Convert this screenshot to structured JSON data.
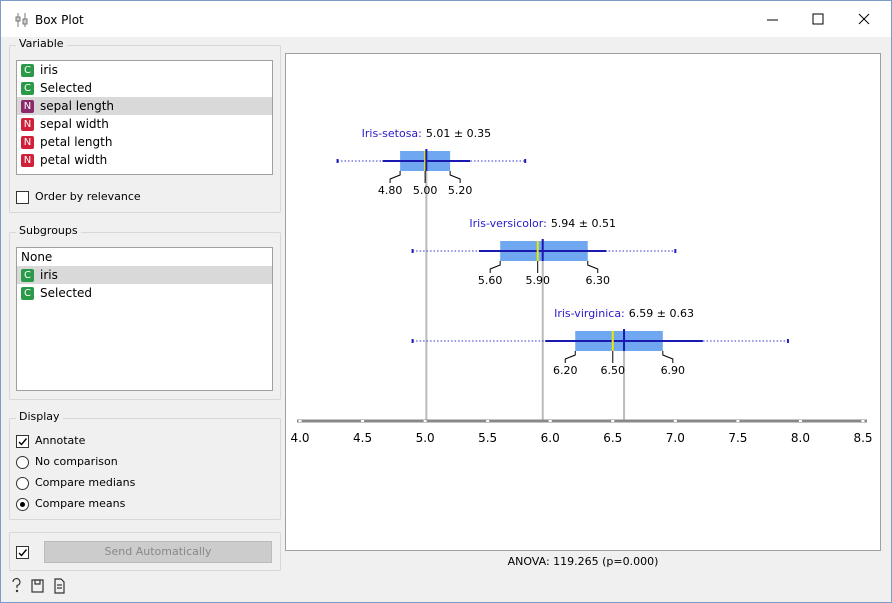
{
  "window": {
    "title": "Box Plot"
  },
  "variable": {
    "title": "Variable",
    "selected": 2,
    "items": [
      {
        "icon": "C",
        "label": "iris"
      },
      {
        "icon": "C",
        "label": "Selected"
      },
      {
        "icon": "N",
        "label": "sepal length"
      },
      {
        "icon": "N",
        "label": "sepal width"
      },
      {
        "icon": "N",
        "label": "petal length"
      },
      {
        "icon": "N",
        "label": "petal width"
      }
    ],
    "order_by_relevance": {
      "label": "Order by relevance",
      "checked": false
    }
  },
  "subgroups": {
    "title": "Subgroups",
    "selected": 1,
    "items": [
      {
        "label": "None"
      },
      {
        "icon": "C",
        "label": "iris"
      },
      {
        "icon": "C",
        "label": "Selected"
      }
    ]
  },
  "display": {
    "title": "Display",
    "annotate": {
      "label": "Annotate",
      "checked": true
    },
    "options": [
      "No comparison",
      "Compare medians",
      "Compare means"
    ],
    "selected": 2
  },
  "send": {
    "label": "Send Automatically",
    "checked": true
  },
  "chart_data": {
    "type": "box",
    "xlim": [
      4.0,
      8.5
    ],
    "xticks": [
      {
        "value": 4.0,
        "label": "4.0"
      },
      {
        "value": 4.5,
        "label": "4.5"
      },
      {
        "value": 5.0,
        "label": "5.0"
      },
      {
        "value": 5.5,
        "label": "5.5"
      },
      {
        "value": 6.0,
        "label": "6.0"
      },
      {
        "value": 6.5,
        "label": "6.5"
      },
      {
        "value": 7.0,
        "label": "7.0"
      },
      {
        "value": 7.5,
        "label": "7.5"
      },
      {
        "value": 8.0,
        "label": "8.0"
      },
      {
        "value": 8.5,
        "label": "8.5"
      }
    ],
    "box_color": "#6fa8f0",
    "median_color": "#e8e800",
    "mean_color": "#1a1ab0",
    "name_color": "#2a1ac8",
    "groups": [
      {
        "name": "Iris-setosa:",
        "annotation": "5.01 ± 0.35",
        "mean": 5.01,
        "sd": 0.35,
        "min": 4.3,
        "max": 5.8,
        "q1": {
          "value": 4.8,
          "label": "4.80"
        },
        "median": {
          "value": 5.0,
          "label": "5.00"
        },
        "q3": {
          "value": 5.2,
          "label": "5.20"
        }
      },
      {
        "name": "Iris-versicolor:",
        "annotation": "5.94 ± 0.51",
        "mean": 5.94,
        "sd": 0.51,
        "min": 4.9,
        "max": 7.0,
        "q1": {
          "value": 5.6,
          "label": "5.60"
        },
        "median": {
          "value": 5.9,
          "label": "5.90"
        },
        "q3": {
          "value": 6.3,
          "label": "6.30"
        }
      },
      {
        "name": "Iris-virginica:",
        "annotation": "6.59 ± 0.63",
        "mean": 6.59,
        "sd": 0.63,
        "min": 4.9,
        "max": 7.9,
        "q1": {
          "value": 6.2,
          "label": "6.20"
        },
        "median": {
          "value": 6.5,
          "label": "6.50"
        },
        "q3": {
          "value": 6.9,
          "label": "6.90"
        }
      }
    ],
    "footer": "ANOVA: 119.265 (p=0.000)"
  }
}
